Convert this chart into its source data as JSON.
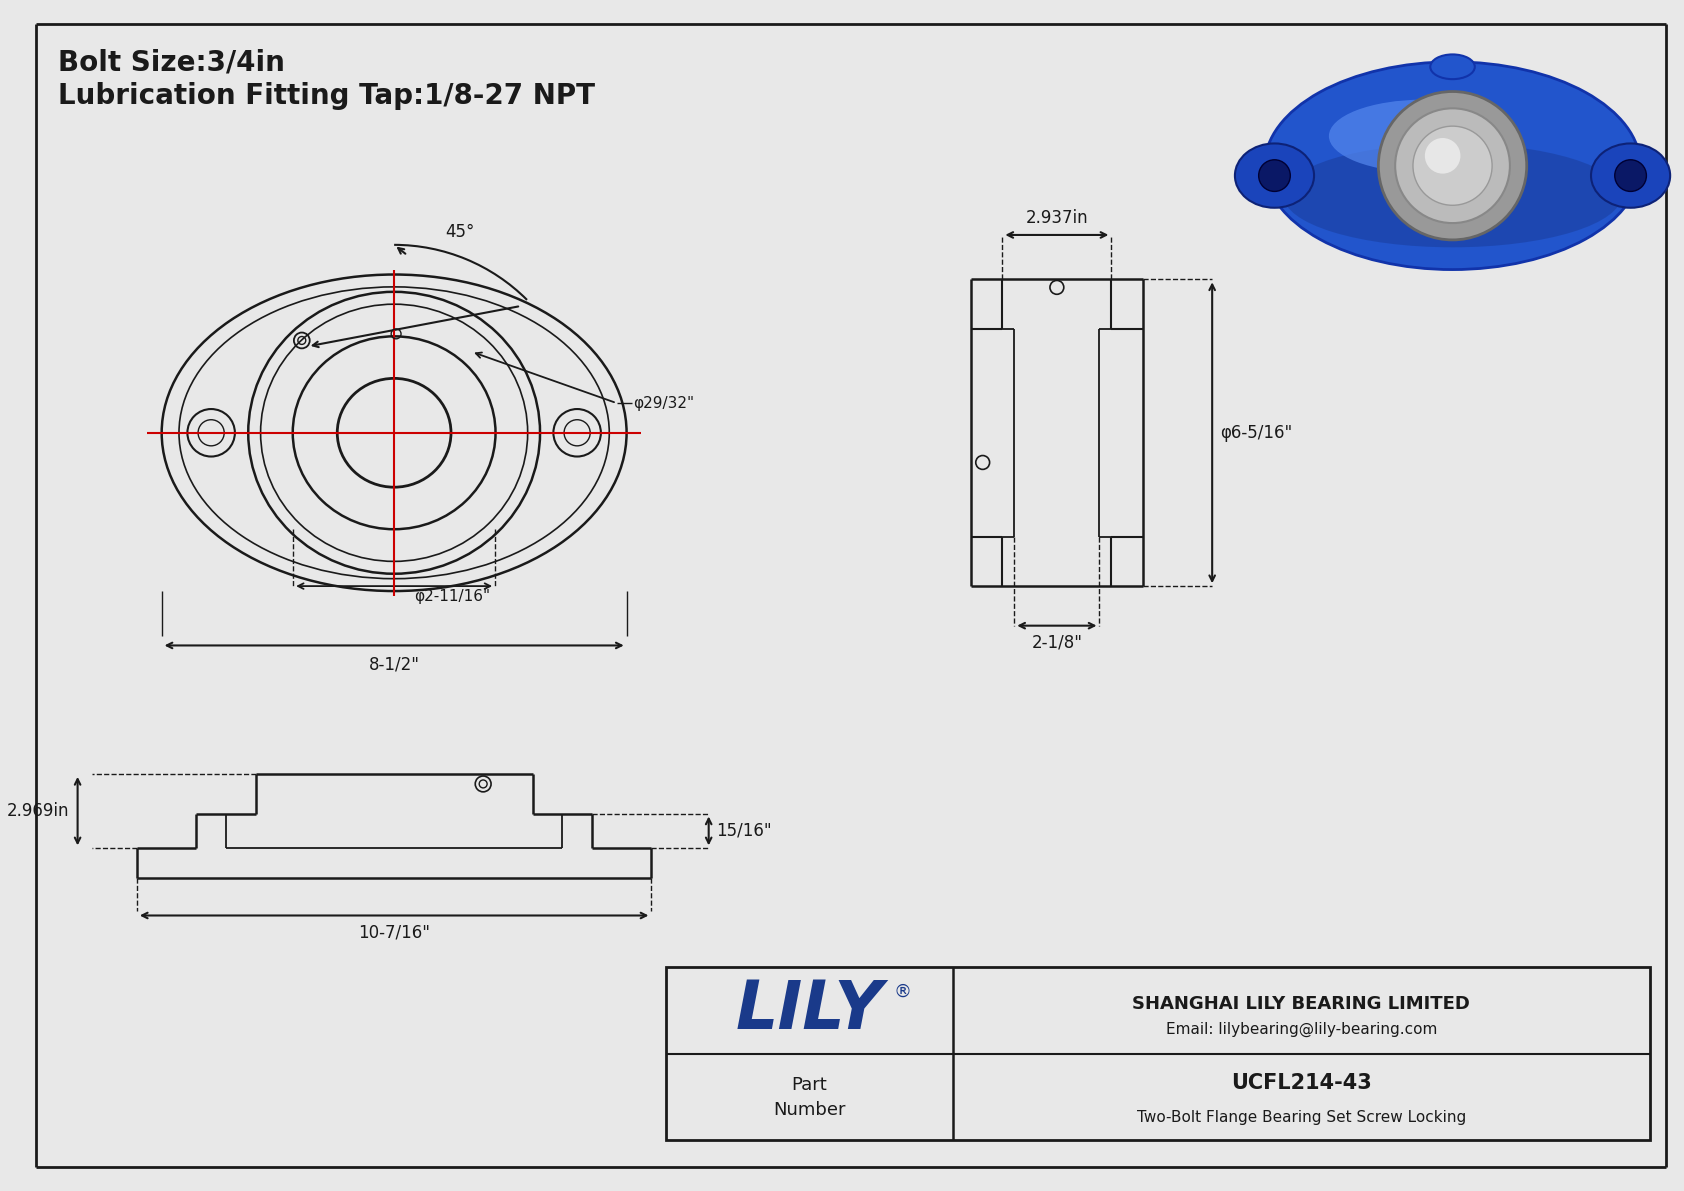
{
  "bg_color": "#e8e8e8",
  "line_color": "#1a1a1a",
  "red_color": "#cc0000",
  "title_line1": "Bolt Size:3/4in",
  "title_line2": "Lubrication Fitting Tap:1/8-27 NPT",
  "dim_8_half": "8-1/2\"",
  "dim_2_11_16": "φ2-11/16\"",
  "dim_29_32": "φ29/32\"",
  "dim_45deg": "45°",
  "dim_2_937": "2.937in",
  "dim_6_5_16": "φ6-5/16\"",
  "dim_2_1_8": "2-1/8\"",
  "dim_2_969": "2.969in",
  "dim_15_16": "15/16\"",
  "dim_10_7_16": "10-7/16\"",
  "part_number": "UCFL214-43",
  "part_desc": "Two-Bolt Flange Bearing Set Screw Locking",
  "company_name": "LILY",
  "company_reg": "®",
  "company_full": "SHANGHAI LILY BEARING LIMITED",
  "company_email": "Email: lilybearing@lily-bearing.com",
  "part_label": "Part\nNumber",
  "lily_color": "#1a3a8a"
}
